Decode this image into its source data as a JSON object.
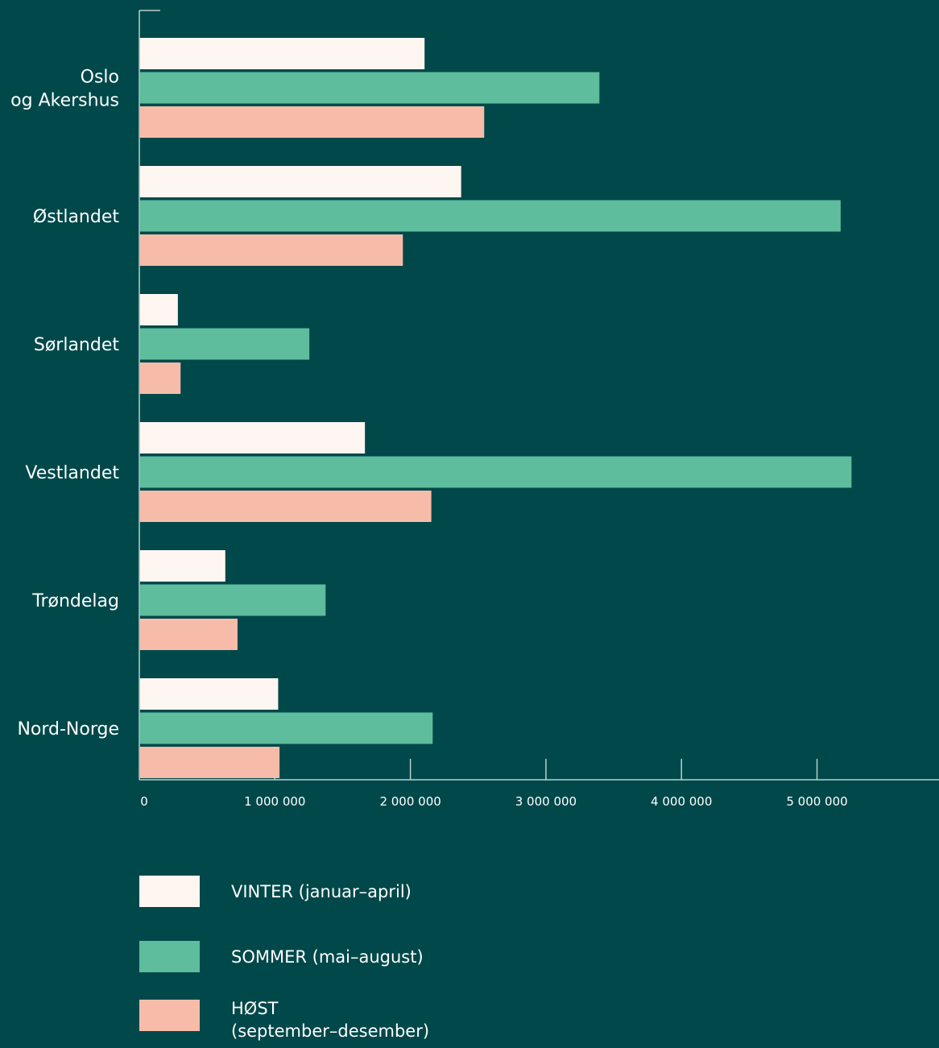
{
  "chart_data": {
    "type": "bar",
    "orientation": "horizontal",
    "categories": [
      [
        "Oslo",
        "og Akershus"
      ],
      [
        "Østlandet"
      ],
      [
        "Sørlandet"
      ],
      [
        "Vestlandet"
      ],
      [
        "Trøndelag"
      ],
      [
        "Nord-Norge"
      ]
    ],
    "series": [
      {
        "name": [
          "VINTER (januar–april)"
        ],
        "color": "#fef6f1",
        "values": [
          2100000,
          2370000,
          280000,
          1660000,
          630000,
          1020000
        ]
      },
      {
        "name": [
          "SOMMER (mai–august)"
        ],
        "color": "#5dbd9d",
        "values": [
          3390000,
          5170000,
          1250000,
          5250000,
          1370000,
          2160000
        ]
      },
      {
        "name": [
          "HØST",
          "(september–desember)"
        ],
        "color": "#f7bca9",
        "values": [
          2540000,
          1940000,
          300000,
          2150000,
          720000,
          1030000
        ]
      }
    ],
    "x_ticks": [
      0,
      1000000,
      2000000,
      3000000,
      4000000,
      5000000
    ],
    "x_tick_labels": [
      "0",
      "1 000 000",
      "2 000 000",
      "3 000 000",
      "4 000 000",
      "5 000 000"
    ],
    "xlim": [
      0,
      5900000
    ],
    "grid": false,
    "legend_position": "bottom-left"
  },
  "colors": {
    "background": "#01484a",
    "axis": "#b7cfcf",
    "text": "#ffffff"
  }
}
